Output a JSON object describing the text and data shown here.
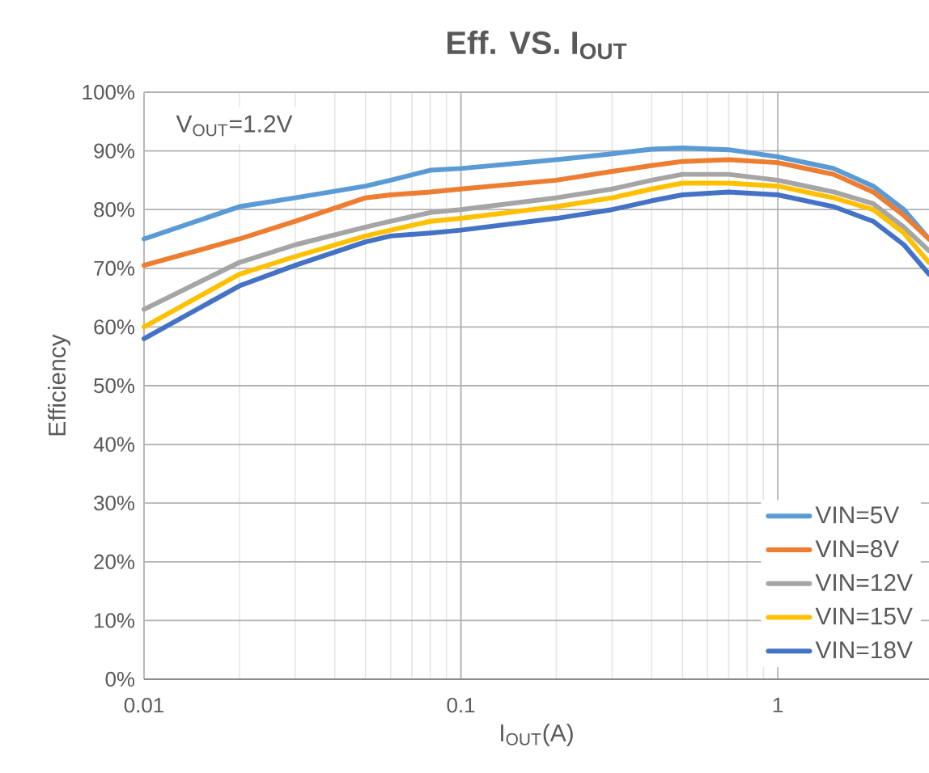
{
  "chart_data": {
    "type": "line",
    "title": "Eff. VS. I$_{OUT}$",
    "xlabel": "I$_{OUT}$(A)",
    "ylabel": "Efficiency",
    "annotations": [
      "V$_{OUT}$=1.2V"
    ],
    "x": [
      0.01,
      0.02,
      0.03,
      0.05,
      0.06,
      0.08,
      0.1,
      0.2,
      0.3,
      0.4,
      0.5,
      0.7,
      1,
      1.5,
      2,
      2.5,
      3
    ],
    "series": [
      {
        "name": "VIN=5V",
        "color": "#5b9bd5",
        "values": [
          75,
          80.5,
          82,
          84,
          85,
          86.7,
          87,
          88.5,
          89.5,
          90.3,
          90.5,
          90.2,
          89,
          87,
          84,
          80,
          75
        ]
      },
      {
        "name": "VIN=8V",
        "color": "#ed7d31",
        "values": [
          70.5,
          75,
          78,
          82,
          82.5,
          83,
          83.5,
          85,
          86.5,
          87.5,
          88.2,
          88.5,
          88,
          86,
          83,
          79,
          75
        ]
      },
      {
        "name": "VIN=12V",
        "color": "#a5a5a5",
        "values": [
          63,
          71,
          74,
          77,
          78,
          79.5,
          80,
          82,
          83.5,
          85,
          86,
          86,
          85,
          83,
          81,
          77,
          73
        ]
      },
      {
        "name": "VIN=15V",
        "color": "#ffc000",
        "values": [
          60,
          69,
          72,
          75.5,
          76.5,
          78,
          78.5,
          80.5,
          82,
          83.5,
          84.5,
          84.5,
          84,
          82,
          80,
          76,
          71
        ]
      },
      {
        "name": "VIN=18V",
        "color": "#4472c4",
        "values": [
          58,
          67,
          70.5,
          74.5,
          75.5,
          76,
          76.5,
          78.5,
          80,
          81.5,
          82.5,
          83,
          82.5,
          80.5,
          78,
          74,
          69
        ]
      }
    ],
    "xlim": [
      0.01,
      3
    ],
    "ylim": [
      0,
      100
    ],
    "log": "x",
    "xticks": [
      0.01,
      0.1,
      1
    ],
    "yticks": [
      {
        "value": 0,
        "label": "0%"
      },
      {
        "value": 10,
        "label": "10%"
      },
      {
        "value": 20,
        "label": "20%"
      },
      {
        "value": 30,
        "label": "30%"
      },
      {
        "value": 40,
        "label": "40%"
      },
      {
        "value": 50,
        "label": "50%"
      },
      {
        "value": 60,
        "label": "60%"
      },
      {
        "value": 70,
        "label": "70%"
      },
      {
        "value": 80,
        "label": "80%"
      },
      {
        "value": 90,
        "label": "90%"
      },
      {
        "value": 100,
        "label": "100%"
      }
    ],
    "grid": true,
    "legend": "bottom right",
    "marker": "none",
    "line_style": "solid"
  }
}
